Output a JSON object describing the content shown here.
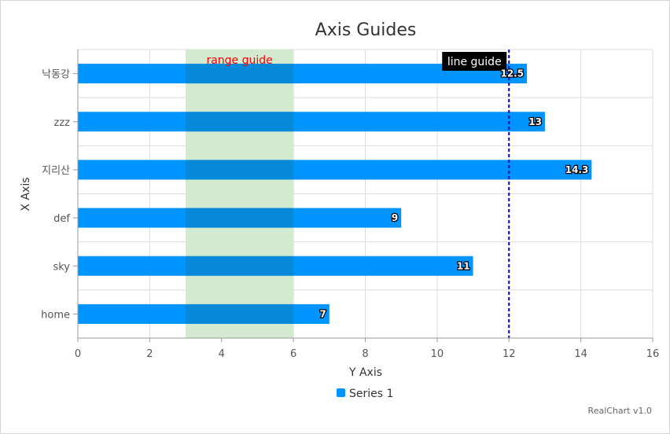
{
  "chart_data": {
    "type": "bar",
    "orientation": "horizontal",
    "title": "Axis Guides",
    "xlabel": "X Axis",
    "ylabel": "Y Axis",
    "categories": [
      "낙동강",
      "zzz",
      "지리산",
      "def",
      "sky",
      "home"
    ],
    "series": [
      {
        "name": "Series 1",
        "values": [
          12.5,
          13,
          14.3,
          9,
          11,
          7
        ],
        "color": "#0094ff"
      }
    ],
    "value_axis": {
      "min": 0,
      "max": 16,
      "ticks": [
        0,
        2,
        4,
        6,
        8,
        10,
        12,
        14,
        16
      ]
    },
    "grid": true,
    "legend": "bottom-center",
    "data_labels": true,
    "guides": [
      {
        "type": "range",
        "from": 3,
        "to": 6,
        "label": "range guide",
        "fill": "#d4ead0",
        "label_color": "#ff0000"
      },
      {
        "type": "line",
        "value": 12,
        "label": "line guide",
        "color": "#0000cc",
        "dashed": true,
        "label_background": "#000000"
      }
    ],
    "credit": "RealChart v1.0"
  }
}
